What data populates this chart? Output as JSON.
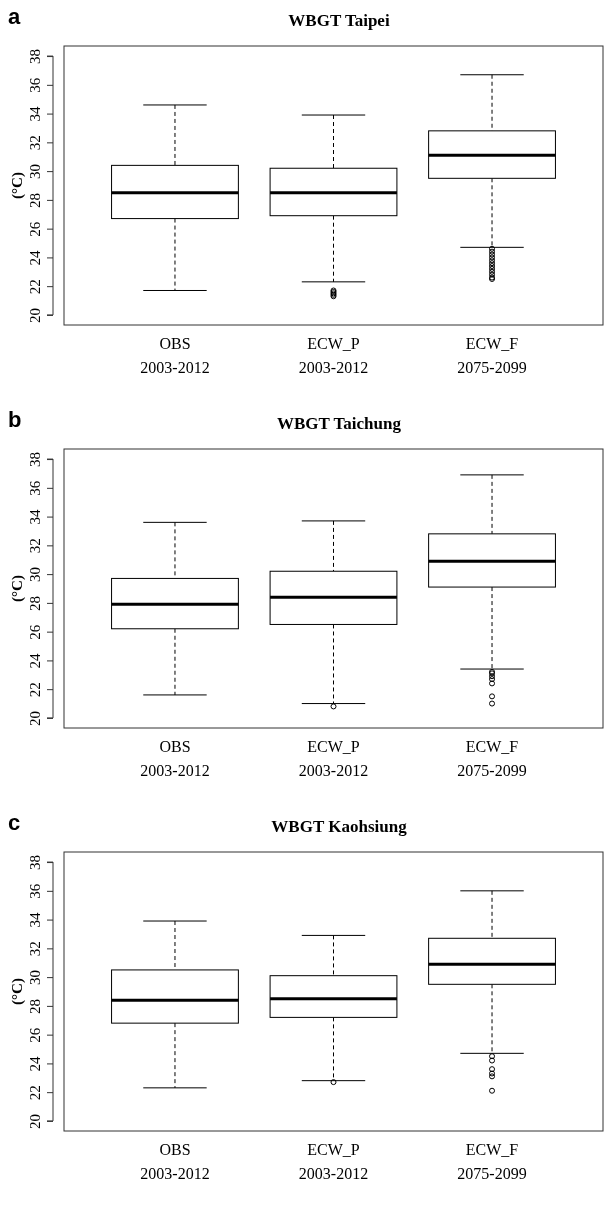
{
  "chart_data": [
    {
      "type": "box",
      "title": "WBGT Taipei",
      "ylabel": "(°C)",
      "annotations": [
        "a"
      ],
      "categories": [
        "OBS\n2003-2012",
        "ECW_P\n2003-2012",
        "ECW_F\n2075-2099"
      ],
      "ylim": [
        19.3,
        38.7
      ],
      "yticks": [
        20,
        22,
        24,
        26,
        28,
        30,
        32,
        34,
        36,
        38
      ],
      "boxes": [
        {
          "low": 21.7,
          "q1": 26.7,
          "median": 28.5,
          "q3": 30.4,
          "high": 34.6
        },
        {
          "low": 22.3,
          "q1": 26.9,
          "median": 28.5,
          "q3": 30.2,
          "high": 33.9,
          "outliers": [
            21.3,
            21.4,
            21.5,
            21.6,
            21.7
          ]
        },
        {
          "low": 24.7,
          "q1": 29.5,
          "median": 31.1,
          "q3": 32.8,
          "high": 36.7,
          "outliers": [
            24.6,
            24.4,
            24.2,
            24.0,
            23.8,
            23.6,
            23.4,
            23.2,
            23.0,
            22.8,
            22.6,
            22.5
          ]
        }
      ]
    },
    {
      "type": "box",
      "title": "WBGT Taichung",
      "ylabel": "(°C)",
      "annotations": [
        "b"
      ],
      "categories": [
        "OBS\n2003-2012",
        "ECW_P\n2003-2012",
        "ECW_F\n2075-2099"
      ],
      "ylim": [
        19.3,
        38.7
      ],
      "yticks": [
        20,
        22,
        24,
        26,
        28,
        30,
        32,
        34,
        36,
        38
      ],
      "boxes": [
        {
          "low": 21.6,
          "q1": 26.2,
          "median": 27.9,
          "q3": 29.7,
          "high": 33.6
        },
        {
          "low": 21.0,
          "q1": 26.5,
          "median": 28.4,
          "q3": 30.2,
          "high": 33.7,
          "outliers": [
            20.8
          ]
        },
        {
          "low": 23.4,
          "q1": 29.1,
          "median": 30.9,
          "q3": 32.8,
          "high": 36.9,
          "outliers": [
            23.2,
            23.1,
            22.9,
            22.7,
            22.4,
            21.5,
            21.0
          ]
        }
      ]
    },
    {
      "type": "box",
      "title": "WBGT Kaohsiung",
      "ylabel": "(°C)",
      "annotations": [
        "c"
      ],
      "categories": [
        "OBS\n2003-2012",
        "ECW_P\n2003-2012",
        "ECW_F\n2075-2099"
      ],
      "ylim": [
        19.3,
        38.7
      ],
      "yticks": [
        20,
        22,
        24,
        26,
        28,
        30,
        32,
        34,
        36,
        38
      ],
      "boxes": [
        {
          "low": 22.3,
          "q1": 26.8,
          "median": 28.4,
          "q3": 30.5,
          "high": 33.9
        },
        {
          "low": 22.8,
          "q1": 27.2,
          "median": 28.5,
          "q3": 30.1,
          "high": 32.9,
          "outliers": [
            22.7
          ]
        },
        {
          "low": 24.7,
          "q1": 29.5,
          "median": 30.9,
          "q3": 32.7,
          "high": 36.0,
          "outliers": [
            24.5,
            24.2,
            23.6,
            23.3,
            23.1,
            22.1
          ]
        }
      ]
    }
  ]
}
